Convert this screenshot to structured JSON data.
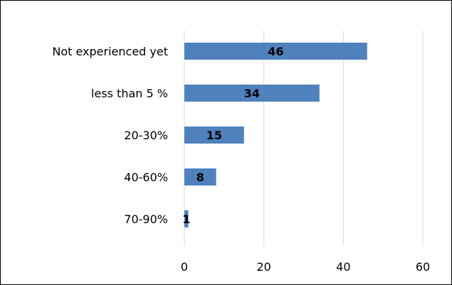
{
  "chart_data": {
    "type": "bar",
    "orientation": "horizontal",
    "categories": [
      "Not experienced yet",
      "less than 5 %",
      "20-30%",
      "40-60%",
      "70-90%"
    ],
    "values": [
      46,
      34,
      15,
      8,
      1
    ],
    "title": "",
    "xlabel": "",
    "ylabel": "",
    "xlim": [
      0,
      60
    ],
    "xticks": [
      0,
      20,
      40,
      60
    ],
    "grid": true,
    "legend": "none",
    "data_labels": true,
    "colors": {
      "bar": "#4f81bd",
      "grid": "#d9d9d9",
      "text": "#000000"
    }
  }
}
